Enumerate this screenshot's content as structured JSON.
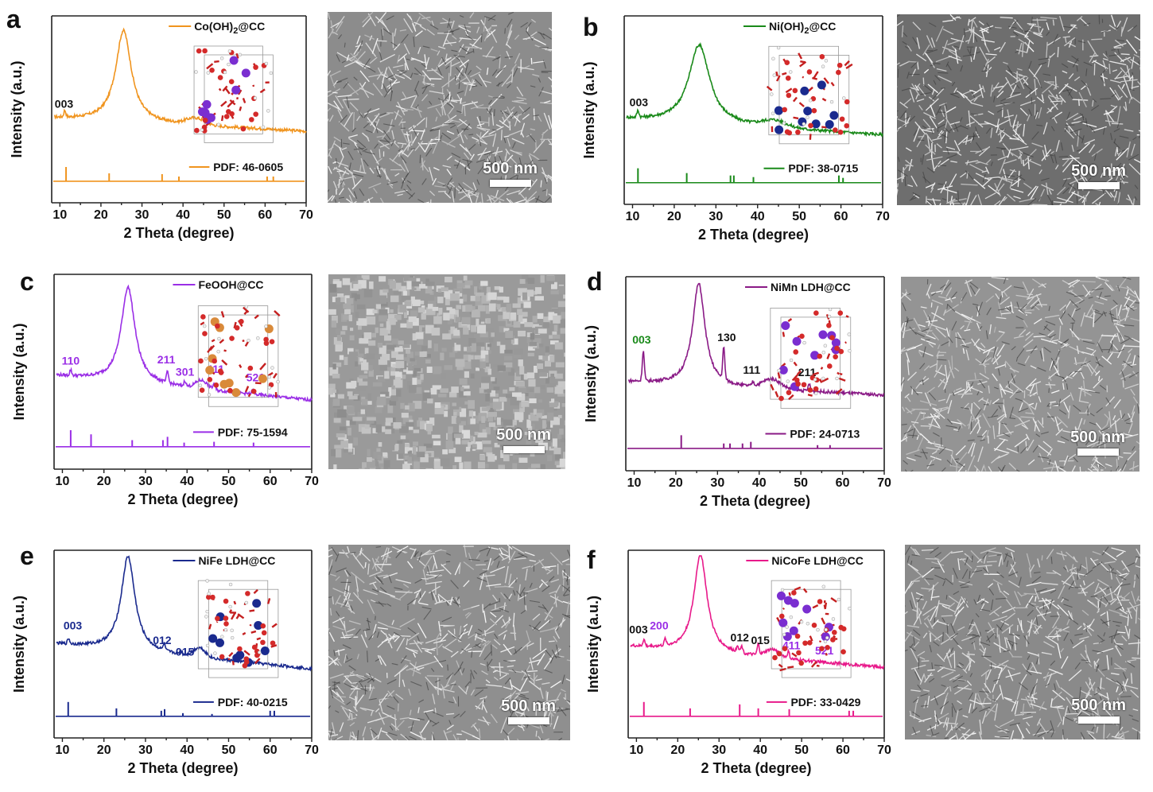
{
  "chart_data": [
    {
      "id": "a",
      "type": "line",
      "legend": "Co(OH)",
      "legend_sub": "2",
      "legend_tail": "@CC",
      "pdf_label": "PDF: 46-0605",
      "xlabel": "2 Theta (degree)",
      "ylabel": "Intensity (a.u.)",
      "xlim": [
        8,
        70
      ],
      "xticks": [
        10,
        20,
        30,
        40,
        50,
        60,
        70
      ],
      "color": "#f0941e",
      "main_peak": 25.5,
      "baseline": [
        0.26,
        0.16
      ],
      "amp": 0.7,
      "width": 2.3,
      "broad": [
        {
          "x": 43,
          "h": 0.05,
          "w": 3
        }
      ],
      "small": [
        {
          "x": 11.2,
          "h": 0.05
        }
      ],
      "ref_lines": [
        {
          "x": 11.5,
          "h": 0.9
        },
        {
          "x": 22,
          "h": 0.5
        },
        {
          "x": 34.9,
          "h": 0.45
        },
        {
          "x": 39,
          "h": 0.3
        },
        {
          "x": 60.5,
          "h": 0.3
        },
        {
          "x": 62,
          "h": 0.3
        }
      ],
      "peak_labels": [
        {
          "text": "003",
          "x": 11,
          "y": 0.34,
          "color": "#111111"
        }
      ],
      "scale_label": "500 nm",
      "sem_tone": "#8c8c8c"
    },
    {
      "id": "b",
      "type": "line",
      "legend": "Ni(OH)",
      "legend_sub": "2",
      "legend_tail": "@CC",
      "pdf_label": "PDF: 38-0715",
      "xlabel": "2 Theta (degree)",
      "ylabel": "Intensity (a.u.)",
      "xlim": [
        8,
        70
      ],
      "xticks": [
        10,
        20,
        30,
        40,
        50,
        60,
        70
      ],
      "color": "#1a8a1a",
      "main_peak": 26,
      "baseline": [
        0.26,
        0.14
      ],
      "amp": 0.6,
      "width": 3.0,
      "broad": [
        {
          "x": 44,
          "h": 0.05,
          "w": 4
        }
      ],
      "small": [
        {
          "x": 11.3,
          "h": 0.05
        }
      ],
      "ref_lines": [
        {
          "x": 11.3,
          "h": 0.9
        },
        {
          "x": 23,
          "h": 0.6
        },
        {
          "x": 33.5,
          "h": 0.45
        },
        {
          "x": 34.3,
          "h": 0.45
        },
        {
          "x": 39,
          "h": 0.35
        },
        {
          "x": 59.5,
          "h": 0.45
        },
        {
          "x": 60.5,
          "h": 0.3
        }
      ],
      "peak_labels": [
        {
          "text": "003",
          "x": 11.5,
          "y": 0.36,
          "color": "#111111"
        }
      ],
      "scale_label": "500 nm",
      "sem_tone": "#6e6e6e"
    },
    {
      "id": "c",
      "type": "line",
      "legend": "FeOOH@CC",
      "legend_sub": "",
      "legend_tail": "",
      "pdf_label": "PDF: 75-1594",
      "xlabel": "2 Theta (degree)",
      "ylabel": "Intensity (a.u.)",
      "xlim": [
        8,
        70
      ],
      "xticks": [
        10,
        20,
        30,
        40,
        50,
        60,
        70
      ],
      "color": "#9a2ee6",
      "main_peak": 25.8,
      "baseline": [
        0.3,
        0.12
      ],
      "amp": 0.7,
      "width": 2.0,
      "broad": [
        {
          "x": 43.5,
          "h": 0.06,
          "w": 2
        }
      ],
      "small": [
        {
          "x": 12,
          "h": 0.04
        },
        {
          "x": 35.3,
          "h": 0.08
        },
        {
          "x": 39.5,
          "h": 0.04
        },
        {
          "x": 46.5,
          "h": 0.04
        },
        {
          "x": 55.8,
          "h": 0.03
        }
      ],
      "ref_lines": [
        {
          "x": 12,
          "h": 1.0
        },
        {
          "x": 16.9,
          "h": 0.75
        },
        {
          "x": 26.8,
          "h": 0.4
        },
        {
          "x": 34.2,
          "h": 0.4
        },
        {
          "x": 35.3,
          "h": 0.6
        },
        {
          "x": 39.3,
          "h": 0.25
        },
        {
          "x": 46.5,
          "h": 0.3
        },
        {
          "x": 56,
          "h": 0.25
        }
      ],
      "peak_labels": [
        {
          "text": "110",
          "x": 12,
          "y": 0.38,
          "color": "#9a2ee6"
        },
        {
          "text": "211",
          "x": 35,
          "y": 0.39,
          "color": "#9a2ee6"
        },
        {
          "text": "301",
          "x": 39.5,
          "y": 0.3,
          "color": "#9a2ee6"
        },
        {
          "text": "411",
          "x": 46.8,
          "y": 0.32,
          "color": "#9a2ee6"
        },
        {
          "text": "521",
          "x": 56.5,
          "y": 0.26,
          "color": "#9a2ee6"
        }
      ],
      "scale_label": "500 nm",
      "sem_tone": "#9a9a9a"
    },
    {
      "id": "d",
      "type": "line",
      "legend": "NiMn LDH@CC",
      "legend_sub": "",
      "legend_tail": "",
      "pdf_label": "PDF: 24-0713",
      "xlabel": "2 Theta (degree)",
      "ylabel": "Intensity (a.u.)",
      "xlim": [
        8,
        70
      ],
      "xticks": [
        10,
        20,
        30,
        40,
        50,
        60,
        70
      ],
      "color": "#8a1a86",
      "main_peak": 25.5,
      "baseline": [
        0.27,
        0.17
      ],
      "amp": 0.75,
      "width": 1.8,
      "broad": [
        {
          "x": 43,
          "h": 0.07,
          "w": 3
        }
      ],
      "small": [
        {
          "x": 12.2,
          "h": 0.22
        },
        {
          "x": 31.5,
          "h": 0.23
        },
        {
          "x": 38.5,
          "h": 0.03
        },
        {
          "x": 52,
          "h": 0.05
        }
      ],
      "ref_lines": [
        {
          "x": 21.3,
          "h": 0.8
        },
        {
          "x": 31.5,
          "h": 0.3
        },
        {
          "x": 33,
          "h": 0.3
        },
        {
          "x": 36,
          "h": 0.3
        },
        {
          "x": 38,
          "h": 0.4
        },
        {
          "x": 54,
          "h": 0.2
        },
        {
          "x": 57,
          "h": 0.2
        }
      ],
      "peak_labels": [
        {
          "text": "003",
          "x": 11.8,
          "y": 0.55,
          "color": "#1a8a1a"
        },
        {
          "text": "130",
          "x": 32.2,
          "y": 0.57,
          "color": "#111111"
        },
        {
          "text": "111",
          "x": 38.2,
          "y": 0.33,
          "color": "#111111"
        },
        {
          "text": "211",
          "x": 51.5,
          "y": 0.31,
          "color": "#111111"
        }
      ],
      "scale_label": "500 nm",
      "sem_tone": "#949494"
    },
    {
      "id": "e",
      "type": "line",
      "legend": "NiFe LDH@CC",
      "legend_sub": "",
      "legend_tail": "",
      "pdf_label": "PDF: 40-0215",
      "xlabel": "2 Theta (degree)",
      "ylabel": "Intensity (a.u.)",
      "xlim": [
        8,
        70
      ],
      "xticks": [
        10,
        20,
        30,
        40,
        50,
        60,
        70
      ],
      "color": "#1a2a8e",
      "main_peak": 25.8,
      "baseline": [
        0.33,
        0.14
      ],
      "amp": 0.72,
      "width": 2.0,
      "broad": [
        {
          "x": 43,
          "h": 0.07,
          "w": 2
        }
      ],
      "small": [
        {
          "x": 11.5,
          "h": 0.04
        },
        {
          "x": 34.5,
          "h": 0.05
        },
        {
          "x": 38.5,
          "h": 0.03
        }
      ],
      "ref_lines": [
        {
          "x": 11.4,
          "h": 0.9
        },
        {
          "x": 23,
          "h": 0.5
        },
        {
          "x": 33.8,
          "h": 0.35
        },
        {
          "x": 34.6,
          "h": 0.45
        },
        {
          "x": 39,
          "h": 0.2
        },
        {
          "x": 46,
          "h": 0.15
        },
        {
          "x": 60,
          "h": 0.35
        },
        {
          "x": 61,
          "h": 0.35
        }
      ],
      "peak_labels": [
        {
          "text": "003",
          "x": 12.5,
          "y": 0.44,
          "color": "#1a2a8e"
        },
        {
          "text": "012",
          "x": 34,
          "y": 0.33,
          "color": "#1a2a8e"
        },
        {
          "text": "015",
          "x": 39.5,
          "y": 0.24,
          "color": "#1a2a8e"
        }
      ],
      "scale_label": "500 nm",
      "sem_tone": "#8f8f8f"
    },
    {
      "id": "f",
      "type": "line",
      "legend": "NiCoFe LDH@CC",
      "legend_sub": "",
      "legend_tail": "",
      "pdf_label": "PDF: 33-0429",
      "xlabel": "2 Theta (degree)",
      "ylabel": "Intensity (a.u.)",
      "xlim": [
        8,
        70
      ],
      "xticks": [
        10,
        20,
        30,
        40,
        50,
        60,
        70
      ],
      "color": "#e8198a",
      "main_peak": 25.5,
      "baseline": [
        0.31,
        0.15
      ],
      "amp": 0.75,
      "width": 1.9,
      "broad": [
        {
          "x": 43,
          "h": 0.06,
          "w": 2.5
        }
      ],
      "small": [
        {
          "x": 11.8,
          "h": 0.05
        },
        {
          "x": 17,
          "h": 0.05
        },
        {
          "x": 34.5,
          "h": 0.05
        },
        {
          "x": 35.5,
          "h": 0.05
        },
        {
          "x": 39.5,
          "h": 0.08
        },
        {
          "x": 46.8,
          "h": 0.05
        }
      ],
      "ref_lines": [
        {
          "x": 11.8,
          "h": 0.9
        },
        {
          "x": 23,
          "h": 0.5
        },
        {
          "x": 35,
          "h": 0.75
        },
        {
          "x": 39.5,
          "h": 0.5
        },
        {
          "x": 47,
          "h": 0.45
        },
        {
          "x": 61.5,
          "h": 0.35
        },
        {
          "x": 62.5,
          "h": 0.35
        }
      ],
      "peak_labels": [
        {
          "text": "003",
          "x": 10.5,
          "y": 0.41,
          "color": "#111111"
        },
        {
          "text": "200",
          "x": 15.5,
          "y": 0.44,
          "color": "#9a2ee6"
        },
        {
          "text": "012",
          "x": 35,
          "y": 0.35,
          "color": "#111111"
        },
        {
          "text": "015",
          "x": 40,
          "y": 0.33,
          "color": "#111111"
        },
        {
          "text": "411",
          "x": 47.5,
          "y": 0.29,
          "color": "#9a2ee6"
        },
        {
          "text": "521",
          "x": 55.5,
          "y": 0.25,
          "color": "#9a2ee6"
        }
      ],
      "scale_label": "500 nm",
      "sem_tone": "#8a8a8a"
    }
  ]
}
